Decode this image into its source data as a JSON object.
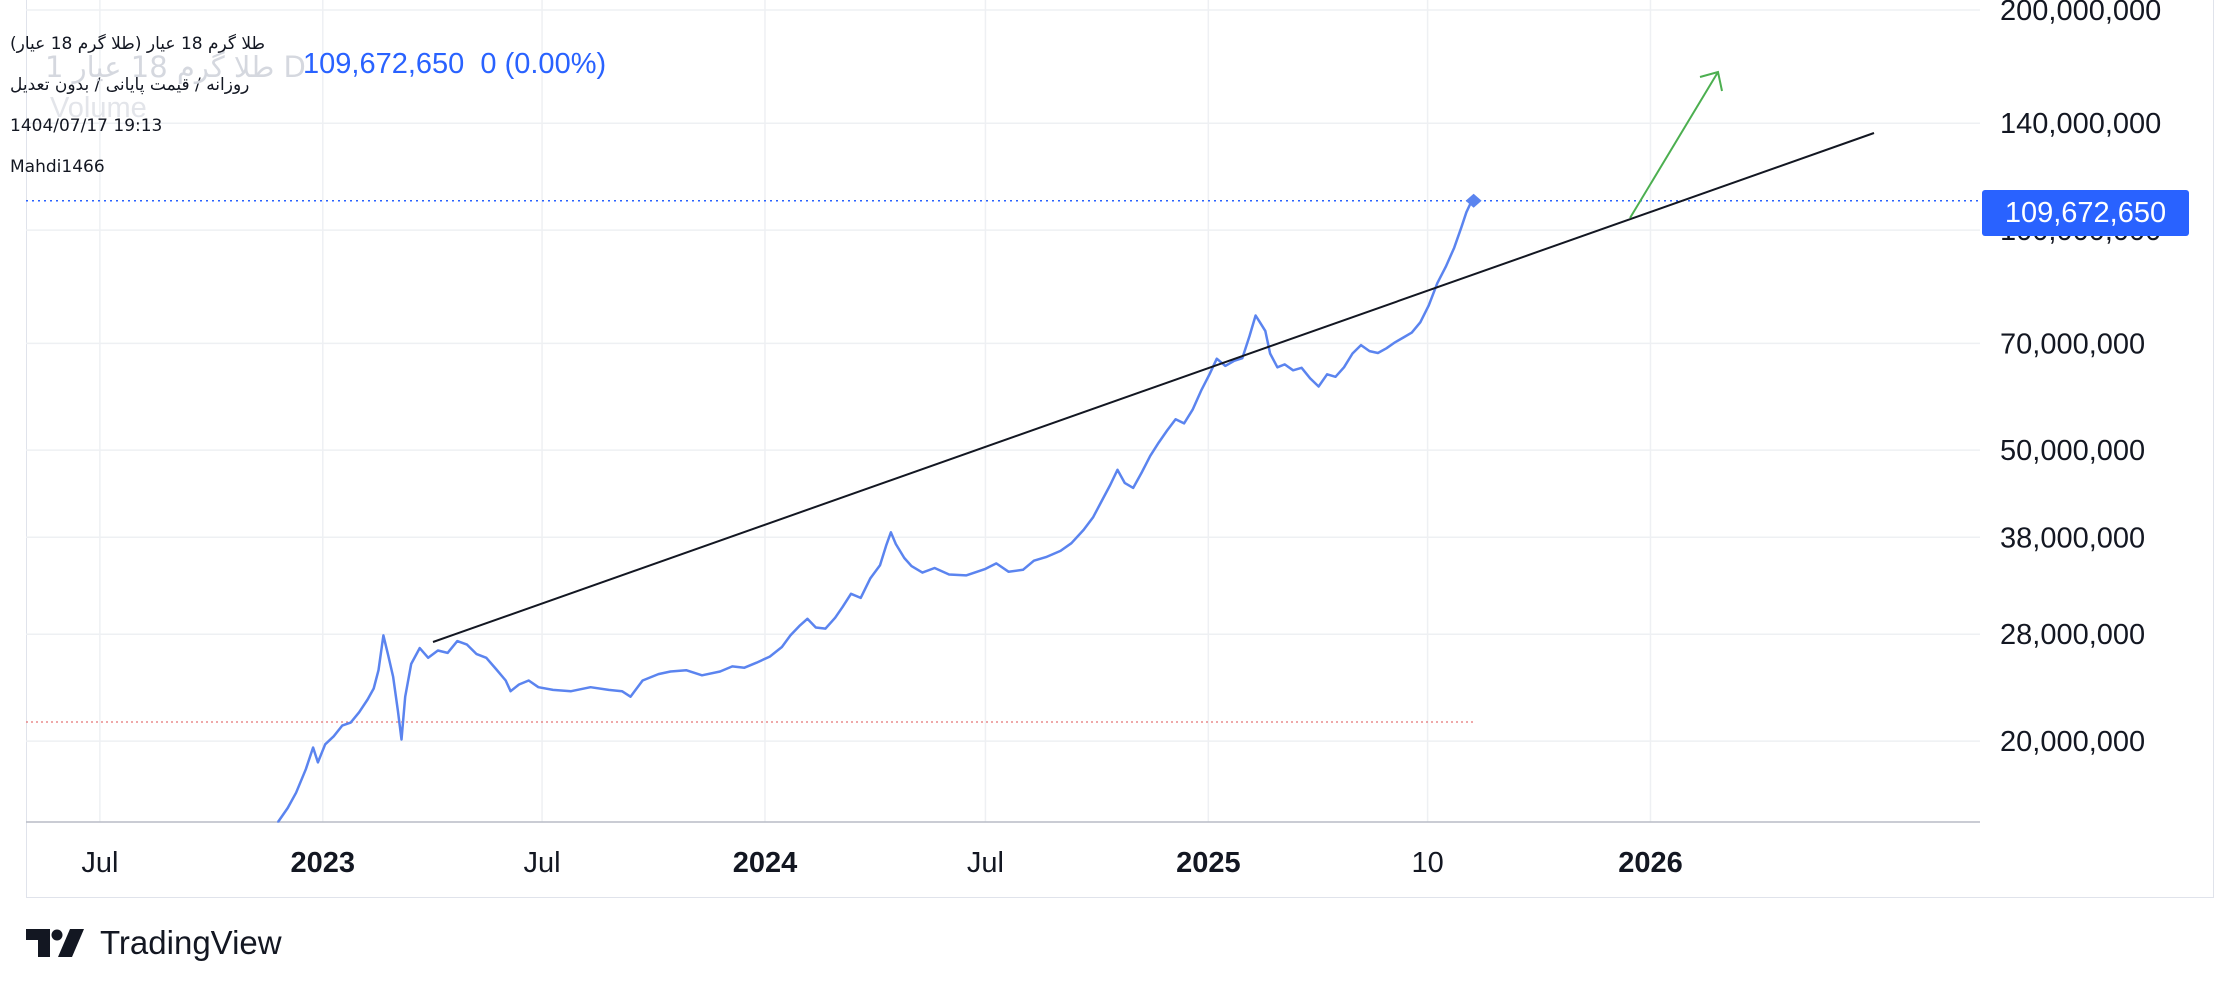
{
  "legend": {
    "symbol_full": "طلا گرم 18 عیار (طلا گرم 18 عیار)",
    "symbol_ghost": "طلا گرم 18 عیار 1",
    "timeframe_ghost": "D",
    "mode": "روزانه / قیمت پایانی / بدون تعدیل",
    "datetime": "1404/07/17 19:13",
    "author": "Mahdi1466",
    "volume_ghost": "Volume",
    "value": "109,672,650",
    "change": "0 (0.00%)"
  },
  "price_tag": "109,672,650",
  "brand": {
    "name": "TradingView",
    "icon": "tradingview-logo-icon"
  },
  "colors": {
    "series": "#5b84ef",
    "price_tag": "#2962ff",
    "trendline": "#131722",
    "arrow": "#4caf50",
    "grid": "#eef0f3"
  },
  "chart_data": {
    "type": "line",
    "scale": "log",
    "grid": true,
    "ylim": [
      15500000,
      200000000
    ],
    "xlim": [
      "2022-05-01",
      "2026-09-30"
    ],
    "y_ticks": [
      {
        "value": 20000000,
        "label": "20,000,000"
      },
      {
        "value": 28000000,
        "label": "28,000,000"
      },
      {
        "value": 38000000,
        "label": "38,000,000"
      },
      {
        "value": 50000000,
        "label": "50,000,000"
      },
      {
        "value": 70000000,
        "label": "70,000,000"
      },
      {
        "value": 100000000,
        "label": "100,000,000"
      },
      {
        "value": 140000000,
        "label": "140,000,000"
      },
      {
        "value": 200000000,
        "label": "200,000,000"
      }
    ],
    "x_ticks": [
      {
        "date": "2022-07-01",
        "label": "Jul",
        "major": false
      },
      {
        "date": "2023-01-01",
        "label": "2023",
        "major": true
      },
      {
        "date": "2023-07-01",
        "label": "Jul",
        "major": false
      },
      {
        "date": "2024-01-01",
        "label": "2024",
        "major": true
      },
      {
        "date": "2024-07-01",
        "label": "Jul",
        "major": false
      },
      {
        "date": "2025-01-01",
        "label": "2025",
        "major": true
      },
      {
        "date": "2025-07-01",
        "label": "10",
        "major": false
      },
      {
        "date": "2026-01-01",
        "label": "2026",
        "major": true
      }
    ],
    "series": [
      {
        "points": [
          [
            "2022-11-25",
            15500000
          ],
          [
            "2022-12-03",
            16200000
          ],
          [
            "2022-12-10",
            17000000
          ],
          [
            "2022-12-18",
            18300000
          ],
          [
            "2022-12-24",
            19600000
          ],
          [
            "2022-12-28",
            18700000
          ],
          [
            "2023-01-03",
            19800000
          ],
          [
            "2023-01-10",
            20300000
          ],
          [
            "2023-01-17",
            21000000
          ],
          [
            "2023-01-24",
            21200000
          ],
          [
            "2023-01-31",
            21900000
          ],
          [
            "2023-02-07",
            22800000
          ],
          [
            "2023-02-12",
            23600000
          ],
          [
            "2023-02-16",
            25000000
          ],
          [
            "2023-02-20",
            27900000
          ],
          [
            "2023-02-24",
            26200000
          ],
          [
            "2023-02-28",
            24500000
          ],
          [
            "2023-03-04",
            22000000
          ],
          [
            "2023-03-07",
            20100000
          ],
          [
            "2023-03-10",
            23000000
          ],
          [
            "2023-03-15",
            25500000
          ],
          [
            "2023-03-22",
            26800000
          ],
          [
            "2023-03-29",
            26000000
          ],
          [
            "2023-04-06",
            26600000
          ],
          [
            "2023-04-14",
            26400000
          ],
          [
            "2023-04-22",
            27400000
          ],
          [
            "2023-04-30",
            27100000
          ],
          [
            "2023-05-08",
            26300000
          ],
          [
            "2023-05-16",
            26000000
          ],
          [
            "2023-05-24",
            25100000
          ],
          [
            "2023-06-01",
            24200000
          ],
          [
            "2023-06-05",
            23400000
          ],
          [
            "2023-06-12",
            23900000
          ],
          [
            "2023-06-20",
            24200000
          ],
          [
            "2023-06-28",
            23700000
          ],
          [
            "2023-07-10",
            23500000
          ],
          [
            "2023-07-25",
            23400000
          ],
          [
            "2023-08-10",
            23700000
          ],
          [
            "2023-08-25",
            23500000
          ],
          [
            "2023-09-05",
            23400000
          ],
          [
            "2023-09-12",
            23000000
          ],
          [
            "2023-09-22",
            24200000
          ],
          [
            "2023-10-05",
            24700000
          ],
          [
            "2023-10-15",
            24900000
          ],
          [
            "2023-10-28",
            25000000
          ],
          [
            "2023-11-10",
            24600000
          ],
          [
            "2023-11-25",
            24900000
          ],
          [
            "2023-12-05",
            25300000
          ],
          [
            "2023-12-15",
            25200000
          ],
          [
            "2023-12-25",
            25600000
          ],
          [
            "2024-01-05",
            26100000
          ],
          [
            "2024-01-15",
            26900000
          ],
          [
            "2024-01-22",
            27900000
          ],
          [
            "2024-01-30",
            28800000
          ],
          [
            "2024-02-05",
            29400000
          ],
          [
            "2024-02-12",
            28600000
          ],
          [
            "2024-02-20",
            28500000
          ],
          [
            "2024-02-28",
            29500000
          ],
          [
            "2024-03-05",
            30500000
          ],
          [
            "2024-03-12",
            31800000
          ],
          [
            "2024-03-20",
            31400000
          ],
          [
            "2024-03-28",
            33400000
          ],
          [
            "2024-04-05",
            34800000
          ],
          [
            "2024-04-10",
            37000000
          ],
          [
            "2024-04-14",
            38600000
          ],
          [
            "2024-04-18",
            37200000
          ],
          [
            "2024-04-25",
            35600000
          ],
          [
            "2024-05-01",
            34700000
          ],
          [
            "2024-05-10",
            34000000
          ],
          [
            "2024-05-20",
            34500000
          ],
          [
            "2024-06-01",
            33800000
          ],
          [
            "2024-06-15",
            33700000
          ],
          [
            "2024-07-01",
            34400000
          ],
          [
            "2024-07-10",
            35000000
          ],
          [
            "2024-07-20",
            34100000
          ],
          [
            "2024-08-01",
            34300000
          ],
          [
            "2024-08-10",
            35300000
          ],
          [
            "2024-08-20",
            35700000
          ],
          [
            "2024-09-01",
            36400000
          ],
          [
            "2024-09-10",
            37300000
          ],
          [
            "2024-09-20",
            38900000
          ],
          [
            "2024-09-28",
            40500000
          ],
          [
            "2024-10-05",
            42600000
          ],
          [
            "2024-10-12",
            44800000
          ],
          [
            "2024-10-18",
            47000000
          ],
          [
            "2024-10-24",
            45100000
          ],
          [
            "2024-10-31",
            44400000
          ],
          [
            "2024-11-07",
            46600000
          ],
          [
            "2024-11-14",
            49100000
          ],
          [
            "2024-11-21",
            51200000
          ],
          [
            "2024-11-28",
            53200000
          ],
          [
            "2024-12-05",
            55100000
          ],
          [
            "2024-12-12",
            54400000
          ],
          [
            "2024-12-19",
            56800000
          ],
          [
            "2024-12-26",
            60300000
          ],
          [
            "2025-01-02",
            63500000
          ],
          [
            "2025-01-08",
            66700000
          ],
          [
            "2025-01-15",
            65200000
          ],
          [
            "2025-01-22",
            66200000
          ],
          [
            "2025-01-29",
            66800000
          ],
          [
            "2025-02-04",
            71600000
          ],
          [
            "2025-02-09",
            76400000
          ],
          [
            "2025-02-13",
            74600000
          ],
          [
            "2025-02-17",
            72800000
          ],
          [
            "2025-02-21",
            67800000
          ],
          [
            "2025-02-27",
            64900000
          ],
          [
            "2025-03-05",
            65500000
          ],
          [
            "2025-03-12",
            64300000
          ],
          [
            "2025-03-19",
            64800000
          ],
          [
            "2025-03-26",
            62700000
          ],
          [
            "2025-04-02",
            61100000
          ],
          [
            "2025-04-09",
            63500000
          ],
          [
            "2025-04-16",
            63000000
          ],
          [
            "2025-04-23",
            64900000
          ],
          [
            "2025-04-30",
            67800000
          ],
          [
            "2025-05-07",
            69600000
          ],
          [
            "2025-05-14",
            68300000
          ],
          [
            "2025-05-21",
            67900000
          ],
          [
            "2025-05-28",
            68900000
          ],
          [
            "2025-06-04",
            70200000
          ],
          [
            "2025-06-11",
            71300000
          ],
          [
            "2025-06-18",
            72400000
          ],
          [
            "2025-06-25",
            74800000
          ],
          [
            "2025-07-02",
            78900000
          ],
          [
            "2025-07-09",
            84600000
          ],
          [
            "2025-07-16",
            89100000
          ],
          [
            "2025-07-23",
            94600000
          ],
          [
            "2025-07-29",
            101000000
          ],
          [
            "2025-08-02",
            105800000
          ],
          [
            "2025-08-05",
            108400000
          ],
          [
            "2025-08-08",
            109672650
          ]
        ]
      }
    ]
  }
}
